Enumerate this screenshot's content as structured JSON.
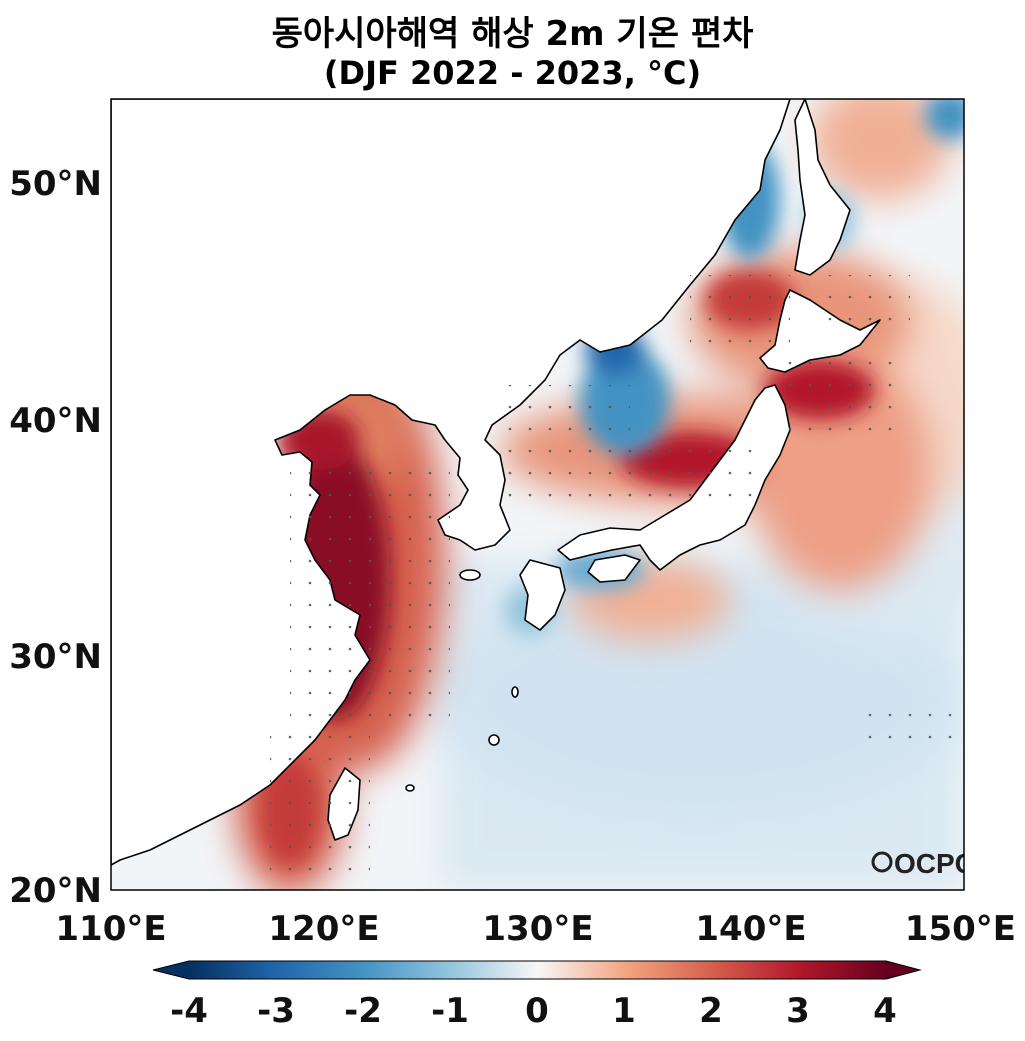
{
  "title": {
    "line1": "동아시아해역 해상 2m 기온 편차",
    "line2": "(DJF 2022 - 2023, °C)"
  },
  "axes": {
    "lat_ticks": [
      "20°N",
      "30°N",
      "40°N",
      "50°N"
    ],
    "lon_ticks": [
      "110°E",
      "120°E",
      "130°E",
      "140°E",
      "150°E"
    ],
    "lon_range": [
      110,
      150
    ],
    "lat_range": [
      20,
      53.5
    ]
  },
  "colorbar": {
    "labels": [
      "-4",
      "-3",
      "-2",
      "-1",
      "0",
      "1",
      "2",
      "3",
      "4"
    ],
    "range": [
      -4,
      4
    ],
    "cmap": "RdBu_r"
  },
  "logo": "OCPC",
  "colors": {
    "warm_dark": "#67001f",
    "warm": "#d6604d",
    "cool": "#4393c3",
    "cool_dark": "#053061",
    "neutral": "#f7f7f7"
  }
}
